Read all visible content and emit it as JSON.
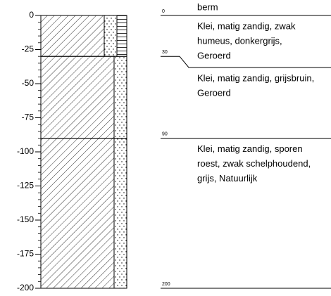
{
  "header": "berm",
  "axis": {
    "lim": [
      0,
      -200
    ],
    "ticks": [
      0,
      -25,
      -50,
      -75,
      -100,
      -125,
      -150,
      -175,
      -200
    ]
  },
  "layers": [
    {
      "top": 0,
      "bottom": 30,
      "description": [
        "Klei, matig zandig, zwak",
        "humeus, donkergrijs,",
        "Geroerd"
      ]
    },
    {
      "top": 30,
      "bottom": 90,
      "description": [
        "Klei, matig zandig, grijsbruin,",
        "Geroerd"
      ]
    },
    {
      "top": 90,
      "bottom": 200,
      "description": [
        "Klei, matig zandig, sporen",
        "roest, zwak schelphoudend,",
        "grijs, Natuurlijk"
      ]
    }
  ]
}
